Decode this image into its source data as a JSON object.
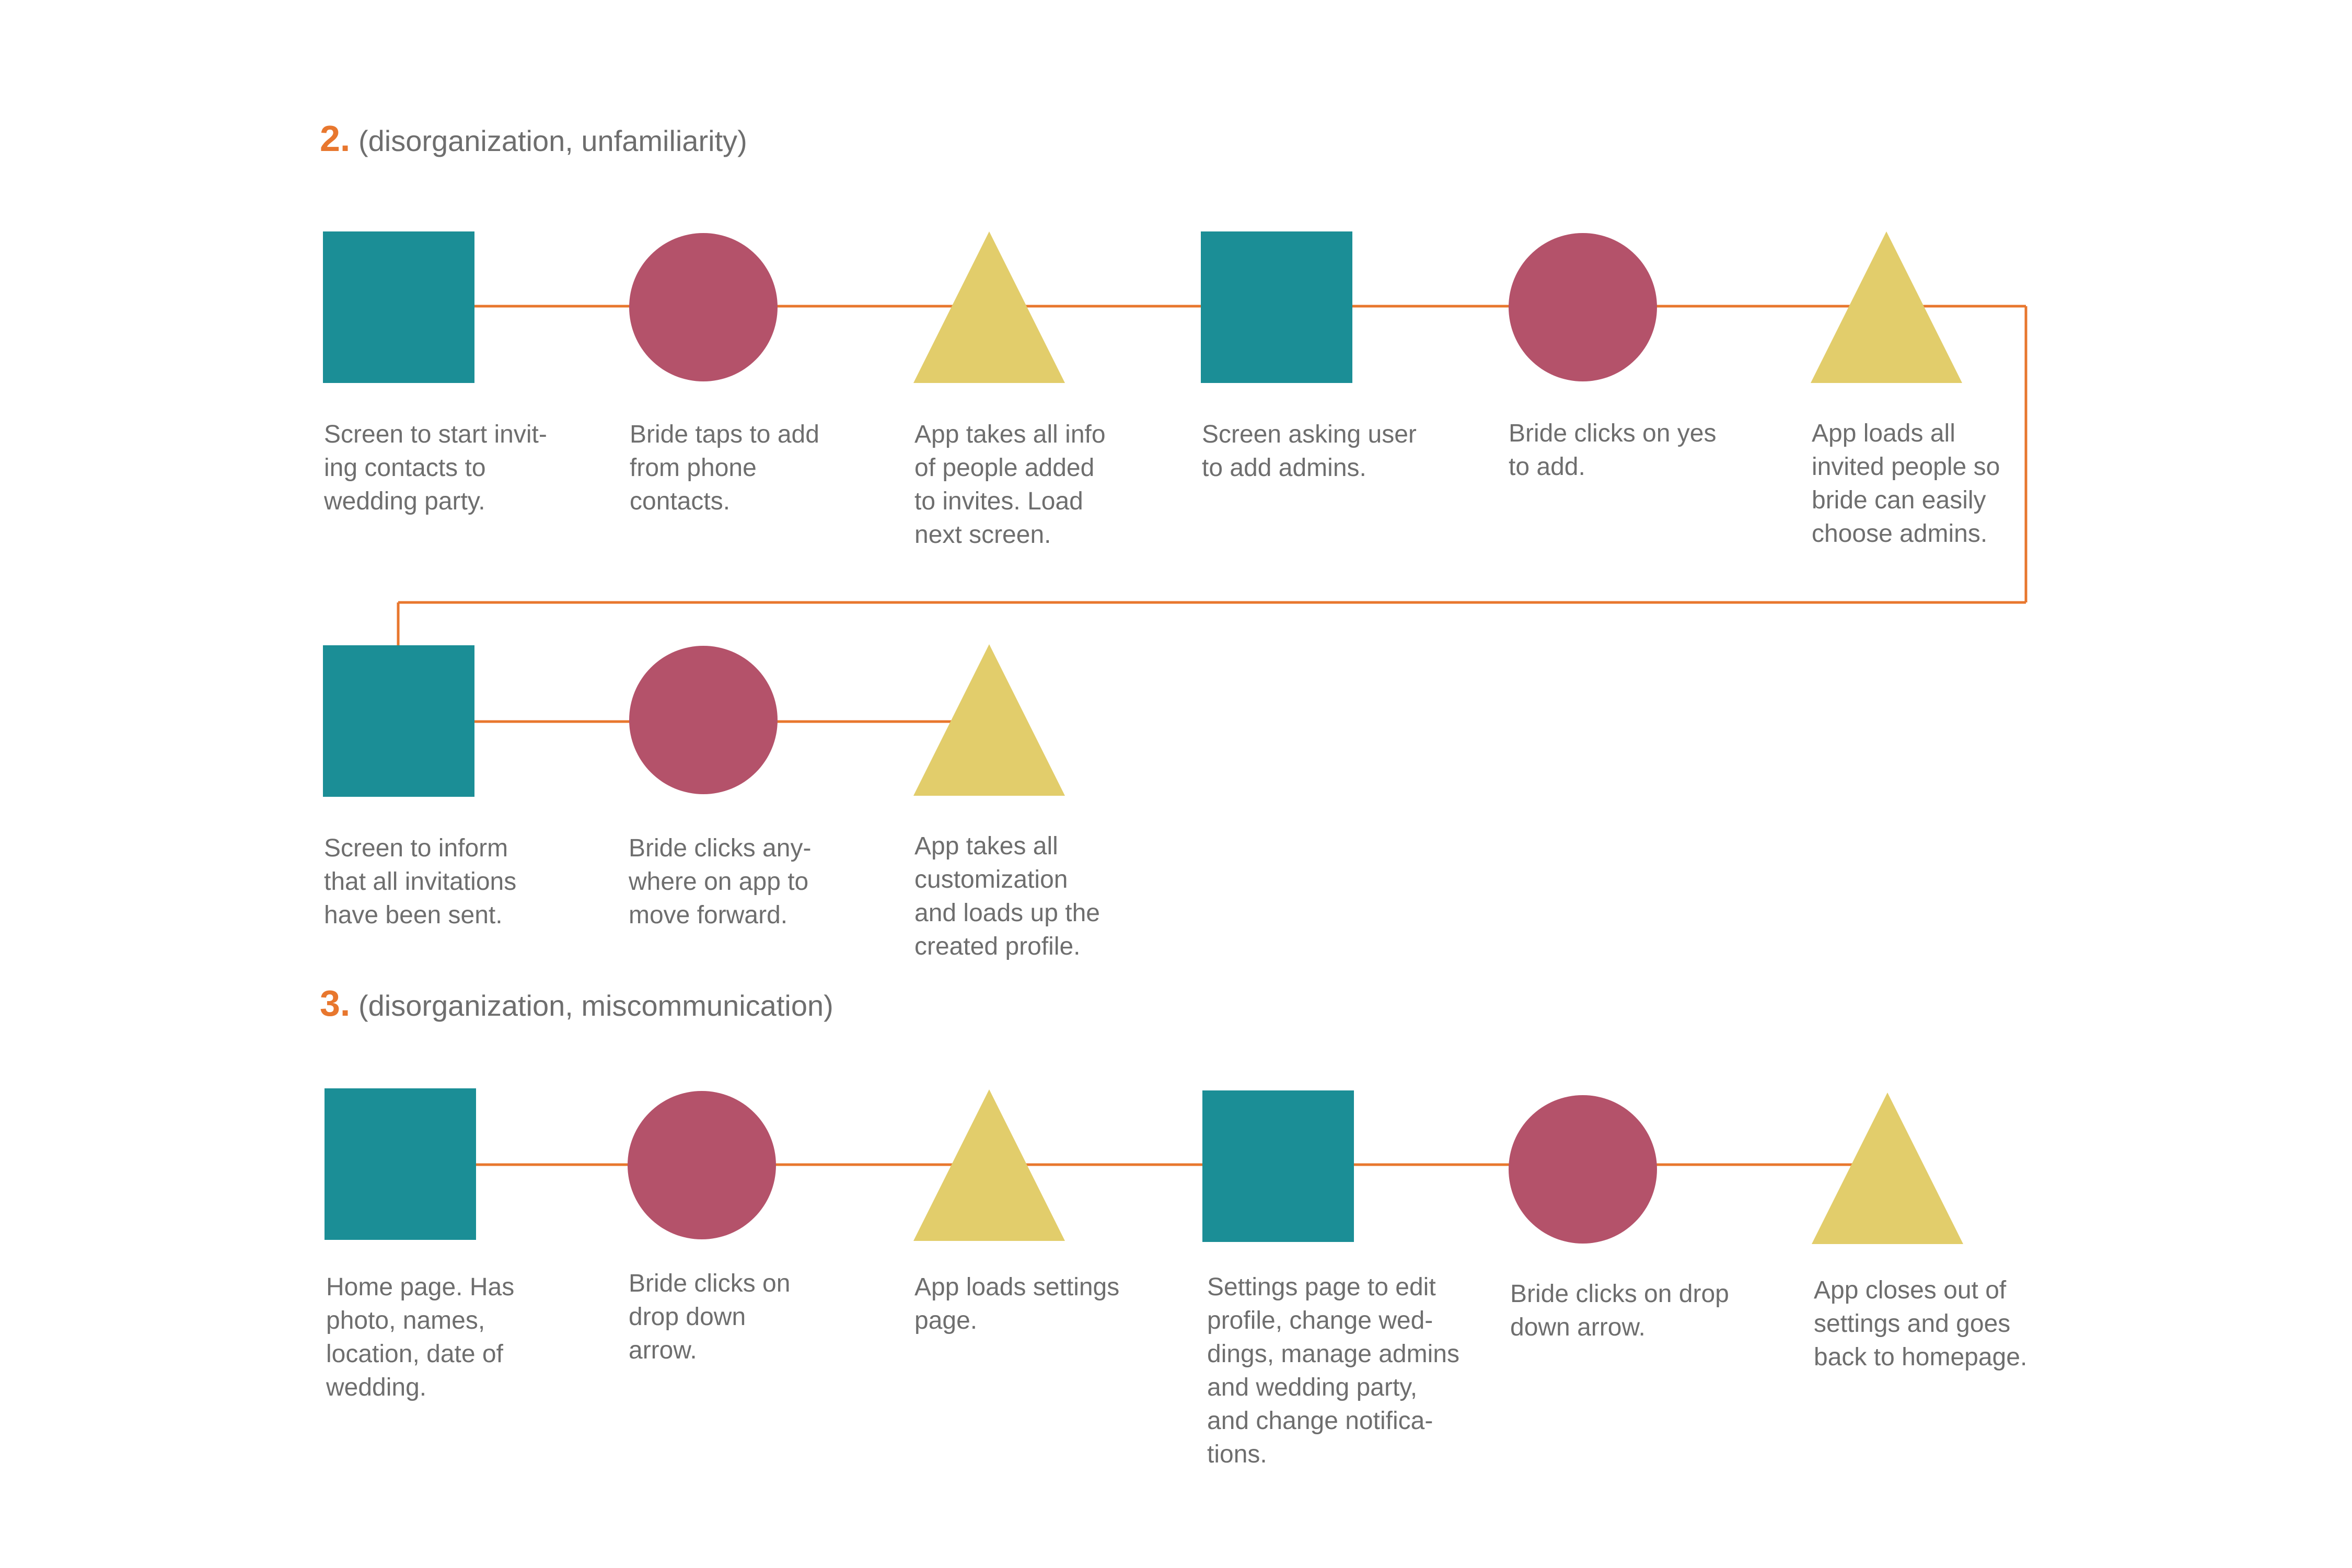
{
  "colors": {
    "connector": "#e8772e",
    "screen": "#1b8e96",
    "action": "#b4526a",
    "response": "#e2cd6b",
    "text": "#6e6e6e",
    "number": "#e8772e"
  },
  "shape_key": {
    "square": "screen",
    "circle": "user-action",
    "triangle": "app-response"
  },
  "sections": [
    {
      "number": "2.",
      "subtitle": "(disorganization, unfamiliarity)",
      "steps": [
        {
          "shape": "square",
          "label": "Screen to start invit-\ning contacts to\nwedding party."
        },
        {
          "shape": "circle",
          "label": "Bride taps to add\nfrom phone\ncontacts."
        },
        {
          "shape": "triangle",
          "label": "App takes all info\nof people added\nto invites. Load\nnext screen."
        },
        {
          "shape": "square",
          "label": "Screen asking user\nto add admins."
        },
        {
          "shape": "circle",
          "label": "Bride clicks on yes\nto add."
        },
        {
          "shape": "triangle",
          "label": "App loads all\ninvited people so\nbride can easily\nchoose admins."
        },
        {
          "shape": "square",
          "label": "Screen to inform\nthat all invitations\nhave been sent."
        },
        {
          "shape": "circle",
          "label": "Bride clicks any-\nwhere on app to\nmove forward."
        },
        {
          "shape": "triangle",
          "label": "App takes all\ncustomization\nand loads up the\ncreated profile."
        }
      ]
    },
    {
      "number": "3.",
      "subtitle": "(disorganization, miscommunication)",
      "steps": [
        {
          "shape": "square",
          "label": "Home page. Has\nphoto, names,\nlocation, date of\nwedding."
        },
        {
          "shape": "circle",
          "label": "Bride clicks on\ndrop down\narrow."
        },
        {
          "shape": "triangle",
          "label": "App loads settings\npage."
        },
        {
          "shape": "square",
          "label": "Settings page to edit\nprofile, change wed-\ndings, manage admins\nand wedding party,\nand change notifica-\ntions."
        },
        {
          "shape": "circle",
          "label": "Bride clicks on drop\ndown arrow."
        },
        {
          "shape": "triangle",
          "label": "App closes out of\nsettings and goes\nback to homepage."
        }
      ]
    }
  ]
}
